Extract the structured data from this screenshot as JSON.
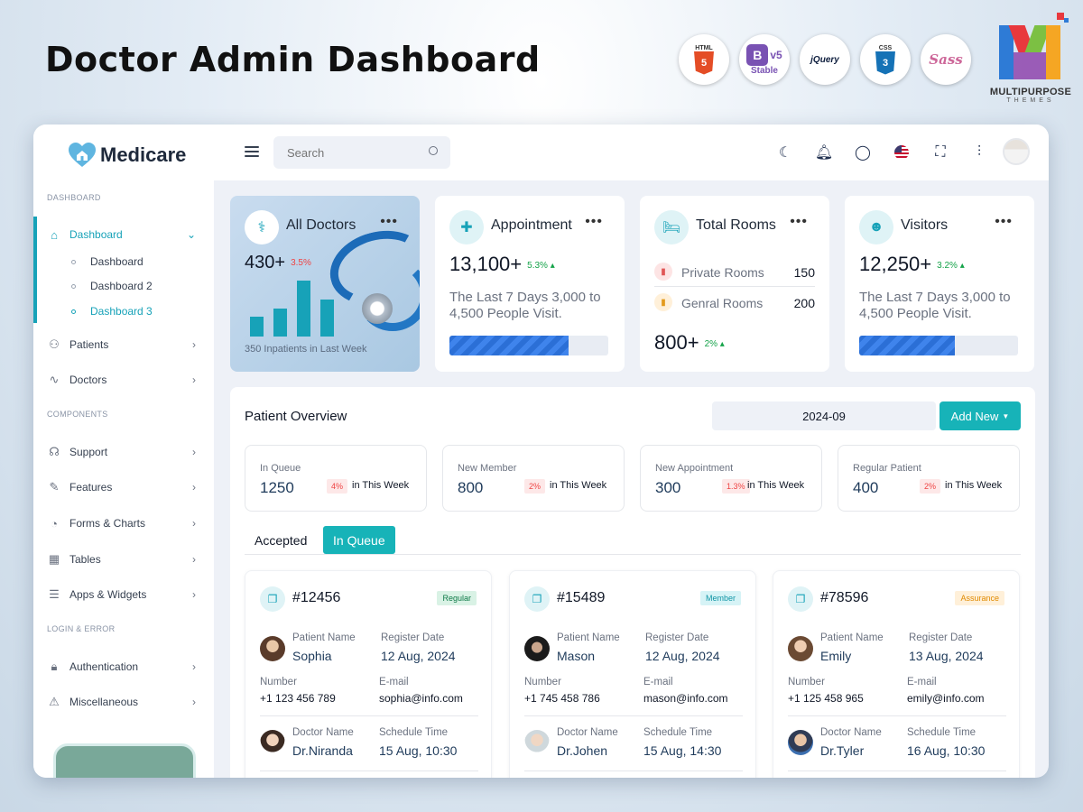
{
  "hero": {
    "title": "Doctor Admin Dashboard",
    "badges": [
      {
        "name": "html5-badge",
        "label": "HTML",
        "sub": "5"
      },
      {
        "name": "bootstrap-badge",
        "label": "v5",
        "sub": "Stable"
      },
      {
        "name": "jquery-badge",
        "label": "jQuery"
      },
      {
        "name": "css3-badge",
        "label": "CSS",
        "sub": "3"
      },
      {
        "name": "sass-badge",
        "label": "Sass"
      }
    ],
    "brand_name": "MULTIPURPOSE",
    "brand_sub": "THEMES"
  },
  "app": {
    "logo_text": "Medicare",
    "sidebar": {
      "section_dashboard": "DASHBOARD",
      "section_components": "COMPONENTS",
      "section_login": "LOGIN & ERROR",
      "dashboard_label": "Dashboard",
      "sub_items": [
        "Dashboard",
        "Dashboard 2",
        "Dashboard 3"
      ],
      "items": [
        {
          "label": "Patients"
        },
        {
          "label": "Doctors"
        },
        {
          "label": "Support"
        },
        {
          "label": "Features"
        },
        {
          "label": "Forms & Charts"
        },
        {
          "label": "Tables"
        },
        {
          "label": "Apps & Widgets"
        },
        {
          "label": "Authentication"
        },
        {
          "label": "Miscellaneous"
        }
      ]
    },
    "topbar": {
      "search_placeholder": "Search"
    },
    "stats": {
      "doctors": {
        "title": "All Doctors",
        "value": "430+",
        "change": "3.5%",
        "caption": "350 Inpatients in Last Week",
        "bars": [
          0.33,
          0.47,
          0.94,
          0.62
        ]
      },
      "appointment": {
        "title": "Appointment",
        "value": "13,100+",
        "change": "5.3%",
        "desc": "The Last 7 Days 3,000 to 4,500 People Visit.",
        "progress": 0.75
      },
      "rooms": {
        "title": "Total Rooms",
        "private_label": "Private Rooms",
        "private_value": "150",
        "general_label": "Genral Rooms",
        "general_value": "200",
        "value": "800+",
        "change": "2%"
      },
      "visitors": {
        "title": "Visitors",
        "value": "12,250+",
        "change": "3.2%",
        "desc": "The Last 7 Days 3,000 to 4,500 People Visit.",
        "progress": 0.6
      }
    },
    "overview": {
      "title": "Patient Overview",
      "date": "2024-09",
      "add_button": "Add New",
      "mini": [
        {
          "label": "In Queue",
          "value": "1250",
          "pct": "4%",
          "week": "in This Week"
        },
        {
          "label": "New Member",
          "value": "800",
          "pct": "2%",
          "week": "in This Week"
        },
        {
          "label": "New Appointment",
          "value": "300",
          "pct": "1.3%",
          "week": "in This Week"
        },
        {
          "label": "Regular Patient",
          "value": "400",
          "pct": "2%",
          "week": "in This Week"
        }
      ],
      "tabs": [
        "Accepted",
        "In Queue"
      ],
      "labels": {
        "patient_name": "Patient Name",
        "register_date": "Register Date",
        "number": "Number",
        "email": "E-mail",
        "doctor_name": "Doctor Name",
        "schedule_time": "Schedule Time"
      },
      "patients": [
        {
          "id": "#12456",
          "badge": "Regular",
          "name": "Sophia",
          "register": "12 Aug, 2024",
          "number": "+1 123 456 789",
          "email": "sophia@info.com",
          "doctor": "Dr.Niranda",
          "schedule": "15 Aug, 10:30"
        },
        {
          "id": "#15489",
          "badge": "Member",
          "name": "Mason",
          "register": "12 Aug, 2024",
          "number": "+1 745 458 786",
          "email": "mason@info.com",
          "doctor": "Dr.Johen",
          "schedule": "15 Aug, 14:30"
        },
        {
          "id": "#78596",
          "badge": "Assurance",
          "name": "Emily",
          "register": "13 Aug, 2024",
          "number": "+1 125 458 965",
          "email": "emily@info.com",
          "doctor": "Dr.Tyler",
          "schedule": "16 Aug, 10:30"
        }
      ]
    }
  }
}
